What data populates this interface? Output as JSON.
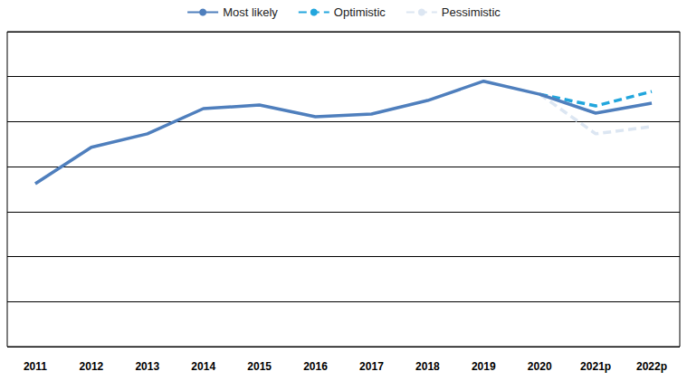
{
  "chart_data": {
    "type": "line",
    "categories": [
      "2011",
      "2012",
      "2013",
      "2014",
      "2015",
      "2016",
      "2017",
      "2018",
      "2019",
      "2020",
      "2021p",
      "2022p"
    ],
    "series": [
      {
        "name": "Most likely",
        "color": "#4f7fbd",
        "line_style": "solid",
        "values": [
          3.62,
          4.43,
          4.73,
          5.29,
          5.37,
          5.11,
          5.17,
          5.47,
          5.9,
          5.61,
          5.19,
          5.41
        ]
      },
      {
        "name": "Optimistic",
        "color": "#22a6dd",
        "line_style": "dashed",
        "values": [
          null,
          null,
          null,
          null,
          null,
          null,
          null,
          null,
          null,
          5.61,
          5.35,
          5.67
        ]
      },
      {
        "name": "Pessimistic",
        "color": "#dce6f2",
        "line_style": "dashed",
        "values": [
          null,
          null,
          null,
          null,
          null,
          null,
          null,
          null,
          null,
          5.61,
          4.73,
          4.89
        ]
      }
    ],
    "ylim": [
      0,
      7
    ],
    "yticks": [
      0,
      1,
      2,
      3,
      4,
      5,
      6,
      7
    ],
    "grid": true,
    "legend": "top",
    "tick_labels": "x",
    "marker": "none"
  }
}
